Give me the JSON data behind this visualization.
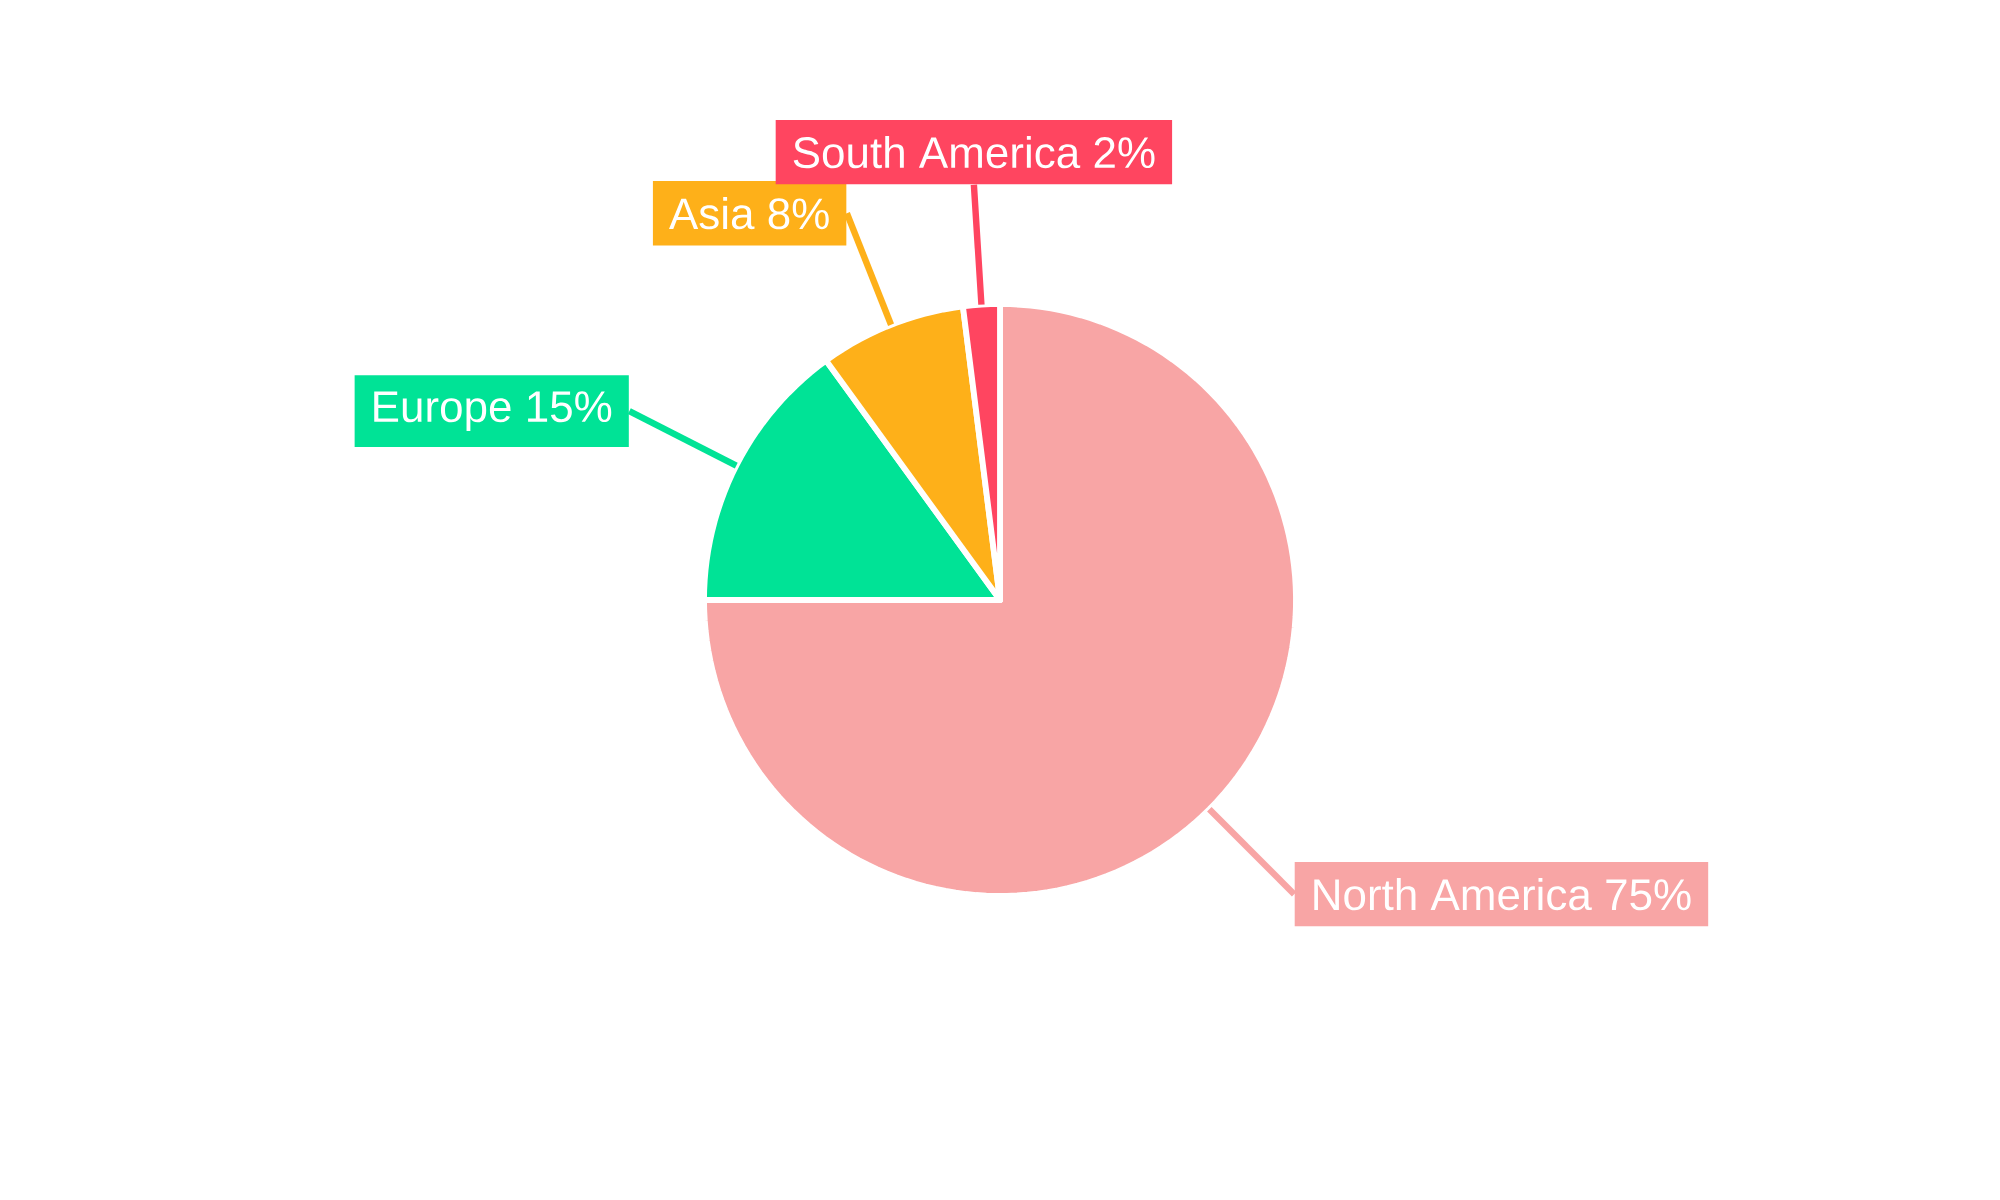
{
  "chart_data": {
    "type": "pie",
    "categories": [
      "North America",
      "Europe",
      "Asia",
      "South America"
    ],
    "values": [
      75,
      15,
      8,
      2
    ],
    "value_labels": [
      "75%",
      "15%",
      "8%",
      "2%"
    ],
    "colors": [
      "#f8a5a5",
      "#00e396",
      "#feb019",
      "#ff4560"
    ]
  }
}
